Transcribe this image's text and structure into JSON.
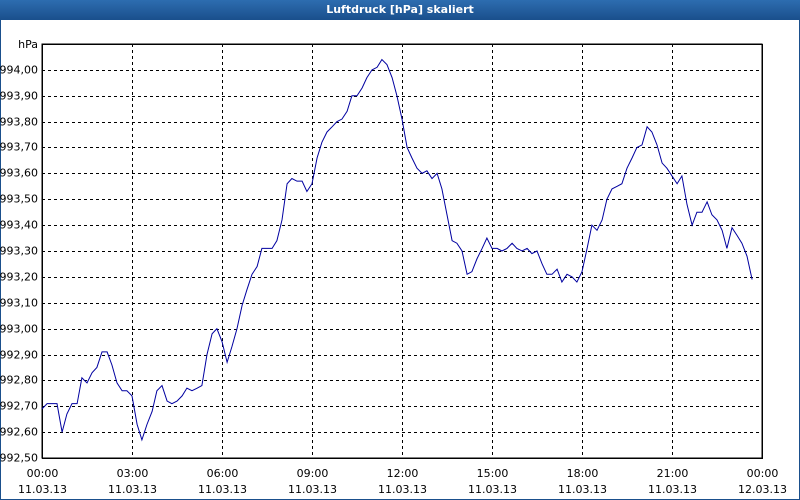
{
  "chart_data": {
    "type": "line",
    "title": "Luftdruck [hPa] skaliert",
    "y_label": "hPa",
    "grid": true,
    "xlim": [
      0,
      24
    ],
    "ylim": [
      992.5,
      994.1
    ],
    "xticks": [
      {
        "value": 0,
        "label": "00:00",
        "date": "11.03.13"
      },
      {
        "value": 3,
        "label": "03:00",
        "date": "11.03.13"
      },
      {
        "value": 6,
        "label": "06:00",
        "date": "11.03.13"
      },
      {
        "value": 9,
        "label": "09:00",
        "date": "11.03.13"
      },
      {
        "value": 12,
        "label": "12:00",
        "date": "11.03.13"
      },
      {
        "value": 15,
        "label": "15:00",
        "date": "11.03.13"
      },
      {
        "value": 18,
        "label": "18:00",
        "date": "11.03.13"
      },
      {
        "value": 21,
        "label": "21:00",
        "date": "11.03.13"
      },
      {
        "value": 24,
        "label": "00:00",
        "date": "12.03.13"
      }
    ],
    "yticks": [
      {
        "value": 992.5,
        "label": "992,50"
      },
      {
        "value": 992.6,
        "label": "992,60"
      },
      {
        "value": 992.7,
        "label": "992,70"
      },
      {
        "value": 992.8,
        "label": "992,80"
      },
      {
        "value": 992.9,
        "label": "992,90"
      },
      {
        "value": 993.0,
        "label": "993,00"
      },
      {
        "value": 993.1,
        "label": "993,10"
      },
      {
        "value": 993.2,
        "label": "993,20"
      },
      {
        "value": 993.3,
        "label": "993,30"
      },
      {
        "value": 993.4,
        "label": "993,40"
      },
      {
        "value": 993.5,
        "label": "993,50"
      },
      {
        "value": 993.6,
        "label": "993,60"
      },
      {
        "value": 993.7,
        "label": "993,70"
      },
      {
        "value": 993.8,
        "label": "993,80"
      },
      {
        "value": 993.9,
        "label": "993,90"
      },
      {
        "value": 994.0,
        "label": "994,00"
      }
    ],
    "x": [
      0,
      0.17,
      0.33,
      0.5,
      0.67,
      0.83,
      1,
      1.17,
      1.33,
      1.5,
      1.67,
      1.83,
      2,
      2.17,
      2.33,
      2.5,
      2.67,
      2.83,
      3,
      3.17,
      3.33,
      3.5,
      3.67,
      3.83,
      4,
      4.17,
      4.33,
      4.5,
      4.67,
      4.83,
      5,
      5.17,
      5.33,
      5.5,
      5.67,
      5.83,
      6,
      6.17,
      6.33,
      6.5,
      6.67,
      6.83,
      7,
      7.17,
      7.33,
      7.5,
      7.67,
      7.83,
      8,
      8.17,
      8.33,
      8.5,
      8.67,
      8.83,
      9,
      9.17,
      9.33,
      9.5,
      9.67,
      9.83,
      10,
      10.17,
      10.33,
      10.5,
      10.67,
      10.83,
      11,
      11.17,
      11.33,
      11.5,
      11.67,
      11.83,
      12,
      12.17,
      12.33,
      12.5,
      12.67,
      12.83,
      13,
      13.17,
      13.33,
      13.5,
      13.67,
      13.83,
      14,
      14.17,
      14.33,
      14.5,
      14.67,
      14.83,
      15,
      15.17,
      15.33,
      15.5,
      15.67,
      15.83,
      16,
      16.17,
      16.33,
      16.5,
      16.67,
      16.83,
      17,
      17.17,
      17.33,
      17.5,
      17.67,
      17.83,
      18,
      18.17,
      18.33,
      18.5,
      18.67,
      18.83,
      19,
      19.17,
      19.33,
      19.5,
      19.67,
      19.83,
      20,
      20.17,
      20.33,
      20.5,
      20.67,
      20.83,
      21,
      21.17,
      21.33,
      21.5,
      21.67,
      21.83,
      22,
      22.17,
      22.33,
      22.5,
      22.67,
      22.83,
      23,
      23.17,
      23.33,
      23.5,
      23.67
    ],
    "series": [
      {
        "name": "Luftdruck",
        "color": "#0000a0",
        "values": [
          992.69,
          992.71,
          992.71,
          992.71,
          992.6,
          992.67,
          992.71,
          992.71,
          992.81,
          992.79,
          992.83,
          992.85,
          992.91,
          992.91,
          992.86,
          992.79,
          992.76,
          992.76,
          992.74,
          992.63,
          992.57,
          992.63,
          992.68,
          992.76,
          992.78,
          992.72,
          992.71,
          992.72,
          992.74,
          992.77,
          992.76,
          992.77,
          992.78,
          992.9,
          992.98,
          993.0,
          992.95,
          992.87,
          992.93,
          993.0,
          993.09,
          993.15,
          993.21,
          993.24,
          993.31,
          993.31,
          993.31,
          993.34,
          993.42,
          993.56,
          993.58,
          993.57,
          993.57,
          993.53,
          993.56,
          993.66,
          993.72,
          993.76,
          993.78,
          993.8,
          993.81,
          993.84,
          993.9,
          993.9,
          993.93,
          993.97,
          994.0,
          994.01,
          994.04,
          994.02,
          993.97,
          993.9,
          993.81,
          993.7,
          993.66,
          993.62,
          993.6,
          993.61,
          993.58,
          993.6,
          993.54,
          993.44,
          993.34,
          993.33,
          993.3,
          993.21,
          993.22,
          993.27,
          993.31,
          993.35,
          993.31,
          993.31,
          993.3,
          993.31,
          993.33,
          993.31,
          993.3,
          993.31,
          993.29,
          993.3,
          993.25,
          993.21,
          993.21,
          993.23,
          993.18,
          993.21,
          993.2,
          993.18,
          993.22,
          993.31,
          993.4,
          993.38,
          993.42,
          993.5,
          993.54,
          993.55,
          993.56,
          993.62,
          993.66,
          993.7,
          993.71,
          993.78,
          993.76,
          993.71,
          993.64,
          993.62,
          993.59,
          993.56,
          993.59,
          993.48,
          993.4,
          993.45,
          993.45,
          993.49,
          993.44,
          993.42,
          993.38,
          993.31,
          993.39,
          993.36,
          993.33,
          993.28,
          993.19
        ]
      }
    ]
  }
}
